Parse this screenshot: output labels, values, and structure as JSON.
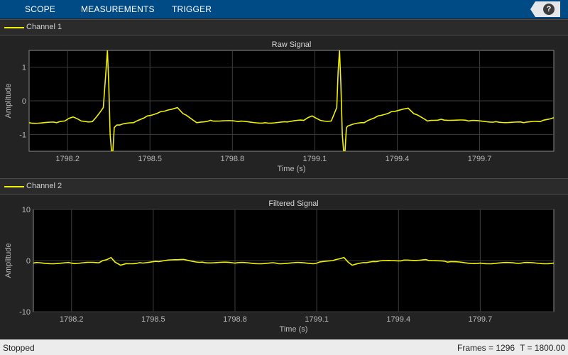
{
  "toolstrip": {
    "tabs": [
      "SCOPE",
      "MEASUREMENTS",
      "TRIGGER"
    ],
    "help_label": "?"
  },
  "colors": {
    "signal": "#f2f200",
    "grid": "#3d3d3d",
    "plot_bg": "#000000"
  },
  "channels": [
    {
      "legend": "Channel 1"
    },
    {
      "legend": "Channel 2"
    }
  ],
  "status": {
    "state": "Stopped",
    "frames": "Frames = 1296",
    "time": "T = 1800.00"
  },
  "chart_data": [
    {
      "type": "line",
      "title": "Raw Signal",
      "xlabel": "Time (s)",
      "ylabel": "Amplitude",
      "xlim": [
        1798.06,
        1799.97
      ],
      "ylim": [
        -1.5,
        1.5
      ],
      "xticks": [
        1798.2,
        1798.5,
        1798.8,
        1799.1,
        1799.4,
        1799.7
      ],
      "xticklabels": [
        "1798.2",
        "1798.5",
        "1798.8",
        "1799.1",
        "1799.4",
        "1799.7"
      ],
      "yticks": [
        1,
        0,
        -1
      ],
      "yticklabels": [
        "1",
        "0",
        "-1"
      ],
      "grid": true,
      "series": [
        {
          "name": "Channel 1",
          "x": [
            1798.06,
            1798.16,
            1798.19,
            1798.22,
            1798.25,
            1798.29,
            1798.33,
            1798.34,
            1798.345,
            1798.35,
            1798.355,
            1798.36,
            1798.365,
            1798.37,
            1798.375,
            1798.38,
            1798.39,
            1798.44,
            1798.49,
            1798.54,
            1798.58,
            1798.6,
            1798.62,
            1798.67,
            1798.72,
            1798.82,
            1798.92,
            1799.0,
            1799.06,
            1799.09,
            1799.12,
            1799.16,
            1799.18,
            1799.185,
            1799.19,
            1799.195,
            1799.2,
            1799.205,
            1799.21,
            1799.215,
            1799.22,
            1799.23,
            1799.28,
            1799.33,
            1799.38,
            1799.42,
            1799.44,
            1799.46,
            1799.51,
            1799.56,
            1799.66,
            1799.76,
            1799.86,
            1799.92,
            1799.97
          ],
          "y": [
            -0.65,
            -0.65,
            -0.6,
            -0.48,
            -0.6,
            -0.62,
            -0.2,
            0.9,
            1.5,
            0.5,
            -1.0,
            -1.5,
            -1.5,
            -0.8,
            -0.75,
            -0.72,
            -0.72,
            -0.65,
            -0.45,
            -0.32,
            -0.25,
            -0.2,
            -0.38,
            -0.65,
            -0.58,
            -0.62,
            -0.65,
            -0.63,
            -0.58,
            -0.45,
            -0.58,
            -0.6,
            -0.2,
            0.9,
            1.5,
            0.5,
            -1.0,
            -1.5,
            -1.5,
            -0.8,
            -0.75,
            -0.72,
            -0.65,
            -0.45,
            -0.32,
            -0.25,
            -0.22,
            -0.38,
            -0.6,
            -0.55,
            -0.6,
            -0.62,
            -0.65,
            -0.62,
            -0.5
          ]
        }
      ]
    },
    {
      "type": "line",
      "title": "Filtered Signal",
      "xlabel": "Time (s)",
      "ylabel": "Amplitude",
      "xlim": [
        1798.06,
        1799.97
      ],
      "ylim": [
        -10,
        10
      ],
      "xticks": [
        1798.2,
        1798.5,
        1798.8,
        1799.1,
        1799.4,
        1799.7
      ],
      "xticklabels": [
        "1798.2",
        "1798.5",
        "1798.8",
        "1799.1",
        "1799.4",
        "1799.7"
      ],
      "yticks": [
        10,
        0,
        -10
      ],
      "yticklabels": [
        "10",
        "0",
        "-10"
      ],
      "grid": true,
      "series": [
        {
          "name": "Channel 2",
          "x": [
            1798.06,
            1798.2,
            1798.3,
            1798.33,
            1798.345,
            1798.36,
            1798.38,
            1798.4,
            1798.45,
            1798.52,
            1798.6,
            1798.68,
            1798.8,
            1798.95,
            1799.1,
            1799.17,
            1799.2,
            1799.215,
            1799.23,
            1799.25,
            1799.27,
            1799.32,
            1799.42,
            1799.5,
            1799.58,
            1799.7,
            1799.85,
            1799.97
          ],
          "y": [
            -0.5,
            -0.5,
            -0.45,
            0.2,
            0.6,
            -0.3,
            -0.9,
            -0.6,
            -0.4,
            -0.2,
            0.2,
            -0.3,
            -0.5,
            -0.5,
            -0.5,
            0.2,
            0.6,
            -0.3,
            -0.9,
            -0.6,
            -0.4,
            -0.2,
            0.1,
            0.2,
            -0.3,
            -0.5,
            -0.5,
            -0.5
          ]
        }
      ]
    }
  ]
}
